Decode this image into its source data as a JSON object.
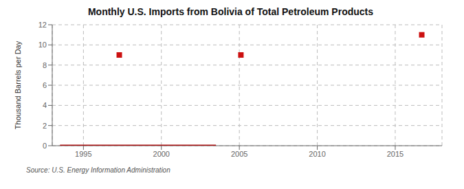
{
  "chart_data": {
    "type": "scatter",
    "title": "Monthly U.S. Imports from Bolivia of Total Petroleum Products",
    "y_label": "Thousand Barrels per Day",
    "annotations": [
      "Source: U.S. Energy Information Administration"
    ],
    "xlim": [
      1993.0,
      2018.0
    ],
    "ylim": [
      0,
      12
    ],
    "xticks": [
      1995,
      2000,
      2005,
      2010,
      2015
    ],
    "yticks": [
      0,
      2,
      4,
      6,
      8,
      10,
      12
    ],
    "grid": true,
    "series": [
      {
        "type": "line",
        "line_style": "solid",
        "color": "#aa1111",
        "x": [
          1993.5,
          2003.5
        ],
        "values": [
          0,
          0
        ]
      },
      {
        "type": "scatter",
        "marker": "square",
        "color": "#cc1111",
        "x": [
          1997.3,
          2005.1,
          2016.7
        ],
        "values": [
          9,
          9,
          11
        ]
      }
    ]
  }
}
